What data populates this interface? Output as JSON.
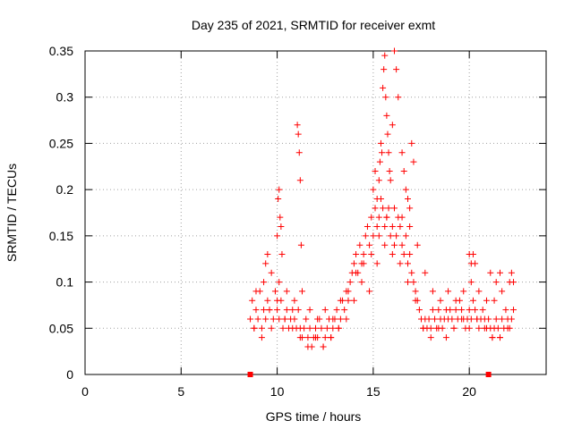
{
  "chart_data": {
    "type": "scatter",
    "title": "Day 235 of 2021, SRMTID for receiver exmt",
    "xlabel": "GPS time / hours",
    "ylabel": "SRMTID / TECUs",
    "xlim": [
      0,
      24
    ],
    "ylim": [
      0,
      0.35
    ],
    "xticks": [
      0,
      5,
      10,
      15,
      20
    ],
    "xtick_labels": [
      "0",
      "5",
      "10",
      "15",
      "20"
    ],
    "yticks": [
      0,
      0.05,
      0.1,
      0.15,
      0.2,
      0.25,
      0.3,
      0.35
    ],
    "ytick_labels": [
      "0",
      "0.05",
      "0.1",
      "0.15",
      "0.2",
      "0.25",
      "0.3",
      "0.35"
    ],
    "grid": true,
    "marker": "+",
    "color": "#ff0000",
    "range_markers": [
      8.6,
      21.0
    ],
    "series": [
      {
        "name": "SRMTID",
        "x": [
          8.6,
          8.7,
          8.8,
          8.9,
          9.0,
          9.1,
          9.2,
          9.3,
          9.4,
          9.5,
          9.6,
          9.7,
          9.8,
          9.9,
          10.0,
          10.1,
          10.2,
          10.3,
          10.4,
          10.5,
          10.6,
          10.7,
          10.8,
          10.9,
          11.0,
          11.1,
          11.2,
          11.3,
          11.4,
          11.5,
          11.6,
          11.7,
          11.8,
          11.9,
          12.0,
          12.1,
          12.2,
          12.3,
          12.4,
          12.5,
          12.6,
          12.7,
          12.8,
          12.9,
          13.0,
          13.1,
          13.2,
          13.3,
          13.4,
          13.5,
          13.6,
          13.7,
          13.8,
          13.9,
          14.0,
          14.1,
          14.2,
          14.3,
          14.4,
          14.5,
          14.6,
          14.7,
          14.8,
          14.9,
          15.0,
          15.1,
          15.2,
          15.3,
          15.4,
          15.5,
          15.6,
          15.7,
          15.8,
          15.9,
          16.0,
          16.1,
          16.2,
          16.3,
          16.4,
          16.5,
          16.6,
          16.7,
          16.8,
          16.9,
          17.0,
          17.1,
          17.2,
          17.3,
          17.4,
          17.5,
          17.6,
          17.7,
          17.8,
          17.9,
          18.0,
          18.1,
          18.2,
          18.3,
          18.4,
          18.5,
          18.6,
          18.7,
          18.8,
          18.9,
          19.0,
          19.1,
          19.2,
          19.3,
          19.4,
          19.5,
          19.6,
          19.7,
          19.8,
          19.9,
          20.0,
          20.1,
          20.2,
          20.3,
          20.4,
          20.5,
          20.6,
          20.7,
          20.8,
          20.9,
          21.0,
          21.1,
          21.2,
          21.3,
          21.4,
          21.5,
          21.6,
          21.7,
          21.8,
          21.9,
          22.0,
          22.1,
          22.2,
          22.3,
          8.8,
          9.2,
          9.6,
          10.0,
          10.4,
          10.8,
          11.2,
          11.6,
          12.0,
          12.4,
          12.8,
          13.2,
          13.6,
          14.0,
          14.4,
          14.8,
          15.2,
          15.6,
          16.0,
          16.4,
          16.8,
          17.2,
          17.6,
          18.0,
          18.4,
          18.8,
          19.2,
          19.6,
          20.0,
          20.4,
          20.8,
          21.2,
          21.6,
          22.0,
          8.9,
          9.3,
          9.7,
          10.1,
          10.5,
          10.9,
          11.3,
          11.7,
          12.1,
          12.5,
          12.9,
          13.3,
          13.7,
          14.1,
          14.5,
          14.9,
          15.3,
          15.7,
          16.1,
          16.5,
          16.9,
          17.3,
          17.7,
          18.1,
          18.5,
          18.9,
          19.3,
          19.7,
          20.1,
          20.5,
          20.9,
          21.3,
          21.7,
          22.1,
          9.4,
          9.5,
          10.0,
          10.05,
          10.1,
          10.15,
          10.2,
          10.25,
          11.05,
          11.1,
          11.15,
          11.2,
          11.25,
          15.0,
          15.1,
          15.2,
          15.3,
          15.35,
          15.4,
          15.45,
          15.5,
          15.55,
          15.6,
          15.65,
          15.7,
          15.75,
          15.8,
          15.85,
          15.9,
          16.0,
          16.1,
          16.2,
          16.3,
          16.5,
          16.6,
          16.7,
          16.8,
          16.9,
          17.0,
          17.1,
          20.0,
          20.1,
          20.2,
          20.3,
          21.1,
          21.4,
          21.6,
          22.2,
          22.3
        ],
        "y": [
          0.06,
          0.08,
          0.05,
          0.07,
          0.06,
          0.09,
          0.05,
          0.07,
          0.06,
          0.08,
          0.07,
          0.05,
          0.06,
          0.09,
          0.07,
          0.06,
          0.08,
          0.05,
          0.06,
          0.07,
          0.05,
          0.06,
          0.07,
          0.06,
          0.05,
          0.07,
          0.05,
          0.04,
          0.05,
          0.06,
          0.04,
          0.05,
          0.03,
          0.04,
          0.05,
          0.04,
          0.06,
          0.05,
          0.03,
          0.04,
          0.05,
          0.06,
          0.04,
          0.05,
          0.06,
          0.07,
          0.05,
          0.06,
          0.08,
          0.07,
          0.09,
          0.08,
          0.1,
          0.11,
          0.12,
          0.13,
          0.11,
          0.14,
          0.12,
          0.13,
          0.15,
          0.16,
          0.14,
          0.17,
          0.15,
          0.18,
          0.16,
          0.17,
          0.19,
          0.18,
          0.16,
          0.17,
          0.18,
          0.15,
          0.16,
          0.14,
          0.15,
          0.17,
          0.16,
          0.14,
          0.13,
          0.15,
          0.12,
          0.13,
          0.11,
          0.1,
          0.09,
          0.08,
          0.07,
          0.06,
          0.05,
          0.06,
          0.05,
          0.06,
          0.05,
          0.07,
          0.06,
          0.05,
          0.07,
          0.06,
          0.05,
          0.06,
          0.07,
          0.06,
          0.07,
          0.06,
          0.05,
          0.07,
          0.06,
          0.08,
          0.07,
          0.06,
          0.05,
          0.06,
          0.07,
          0.06,
          0.08,
          0.07,
          0.06,
          0.05,
          0.06,
          0.07,
          0.06,
          0.05,
          0.06,
          0.05,
          0.04,
          0.05,
          0.06,
          0.05,
          0.04,
          0.06,
          0.05,
          0.07,
          0.06,
          0.05,
          0.06,
          0.07,
          0.05,
          0.04,
          0.07,
          0.08,
          0.06,
          0.05,
          0.04,
          0.03,
          0.04,
          0.03,
          0.04,
          0.05,
          0.06,
          0.08,
          0.1,
          0.09,
          0.12,
          0.14,
          0.13,
          0.12,
          0.1,
          0.08,
          0.05,
          0.04,
          0.05,
          0.04,
          0.05,
          0.06,
          0.05,
          0.06,
          0.05,
          0.04,
          0.04,
          0.05,
          0.09,
          0.1,
          0.11,
          0.1,
          0.09,
          0.08,
          0.09,
          0.07,
          0.06,
          0.07,
          0.06,
          0.08,
          0.09,
          0.11,
          0.12,
          0.13,
          0.15,
          0.17,
          0.18,
          0.17,
          0.16,
          0.14,
          0.11,
          0.09,
          0.08,
          0.09,
          0.08,
          0.09,
          0.1,
          0.09,
          0.08,
          0.08,
          0.09,
          0.1,
          0.12,
          0.13,
          0.15,
          0.19,
          0.2,
          0.17,
          0.16,
          0.13,
          0.27,
          0.26,
          0.24,
          0.21,
          0.14,
          0.2,
          0.22,
          0.19,
          0.21,
          0.23,
          0.25,
          0.24,
          0.31,
          0.33,
          0.345,
          0.3,
          0.28,
          0.26,
          0.24,
          0.22,
          0.21,
          0.27,
          0.35,
          0.33,
          0.3,
          0.24,
          0.22,
          0.2,
          0.19,
          0.18,
          0.25,
          0.23,
          0.13,
          0.12,
          0.13,
          0.12,
          0.11,
          0.1,
          0.11,
          0.11,
          0.1
        ]
      }
    ]
  }
}
